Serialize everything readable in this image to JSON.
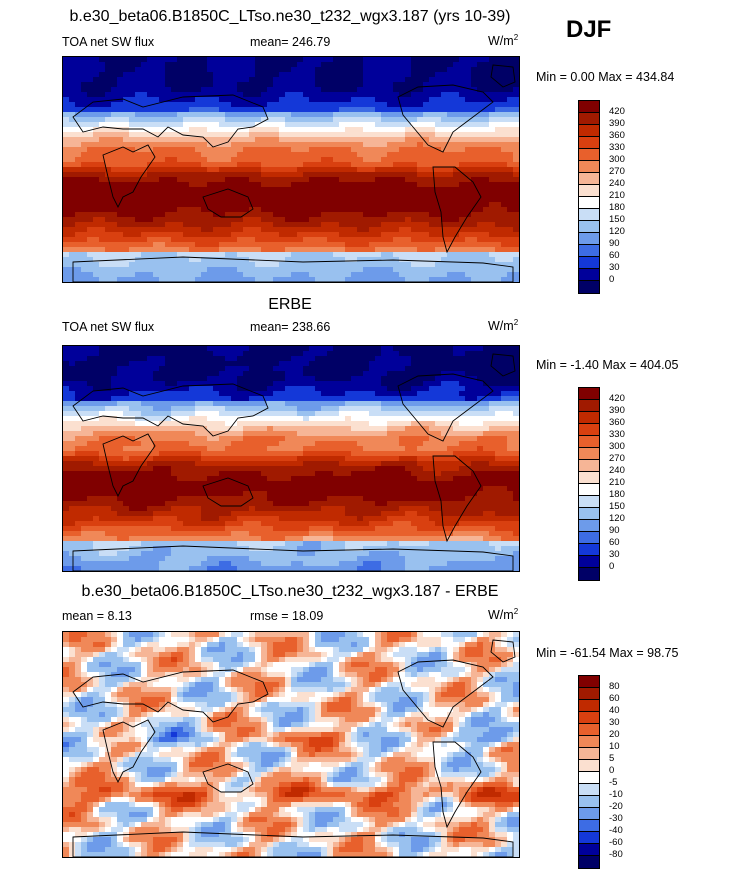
{
  "season": "DJF",
  "panels": [
    {
      "title": "b.e30_beta06.B1850C_LTso.ne30_t232_wgx3.187 (yrs 10-39)",
      "left_label": "TOA net SW flux",
      "center_label": "mean= 246.79",
      "units": "W/m",
      "units_sup": "2",
      "range_text": "Min =   0.00 Max = 434.84",
      "colorbar_labels": [
        "420",
        "390",
        "360",
        "330",
        "300",
        "270",
        "240",
        "210",
        "180",
        "150",
        "120",
        "90",
        "60",
        "30",
        "0"
      ],
      "colors": [
        "#800000",
        "#a01a00",
        "#c02a00",
        "#d94010",
        "#e8602c",
        "#f08858",
        "#f6b596",
        "#fbe0d0",
        "#ffffff",
        "#c9def6",
        "#99c1ef",
        "#6d9bea",
        "#3d6ce4",
        "#1438d8",
        "#00009a",
        "#000066"
      ],
      "field": "model"
    },
    {
      "title": "ERBE",
      "left_label": "TOA net SW flux",
      "center_label": "mean= 238.66",
      "units": "W/m",
      "units_sup": "2",
      "range_text": "Min =  -1.40 Max = 404.05",
      "colorbar_labels": [
        "420",
        "390",
        "360",
        "330",
        "300",
        "270",
        "240",
        "210",
        "180",
        "150",
        "120",
        "90",
        "60",
        "30",
        "0"
      ],
      "colors": [
        "#800000",
        "#a01a00",
        "#c02a00",
        "#d94010",
        "#e8602c",
        "#f08858",
        "#f6b596",
        "#fbe0d0",
        "#ffffff",
        "#c9def6",
        "#99c1ef",
        "#6d9bea",
        "#3d6ce4",
        "#1438d8",
        "#00009a",
        "#000066"
      ],
      "field": "obs"
    },
    {
      "title": "b.e30_beta06.B1850C_LTso.ne30_t232_wgx3.187 - ERBE",
      "left_label": "mean =   8.13",
      "center_label": "rmse =  18.09",
      "units": "W/m",
      "units_sup": "2",
      "range_text": "Min = -61.54 Max =  98.75",
      "colorbar_labels": [
        "80",
        "60",
        "40",
        "30",
        "20",
        "10",
        "5",
        "0",
        "-5",
        "-10",
        "-20",
        "-30",
        "-40",
        "-60",
        "-80"
      ],
      "colors": [
        "#800000",
        "#a01a00",
        "#c02a00",
        "#d94010",
        "#e8602c",
        "#f08858",
        "#f6b596",
        "#fbe0d0",
        "#ffffff",
        "#c9def6",
        "#99c1ef",
        "#6d9bea",
        "#3d6ce4",
        "#1438d8",
        "#00009a",
        "#000066"
      ],
      "field": "diff"
    }
  ]
}
